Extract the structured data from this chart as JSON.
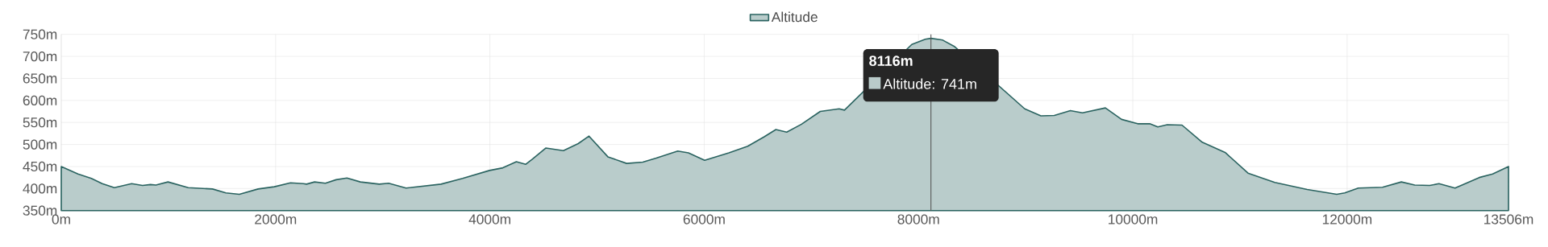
{
  "chart_data": {
    "type": "area",
    "x": [
      0,
      156,
      281,
      382,
      495,
      657,
      758,
      833,
      883,
      996,
      1185,
      1411,
      1536,
      1662,
      1837,
      1988,
      2139,
      2259,
      2289,
      2364,
      2465,
      2565,
      2666,
      2791,
      2967,
      3055,
      3218,
      3544,
      3745,
      3996,
      4121,
      4247,
      4335,
      4398,
      4523,
      4686,
      4824,
      4925,
      5101,
      5276,
      5427,
      5552,
      5753,
      5853,
      6004,
      6230,
      6406,
      6557,
      6669,
      6770,
      6908,
      7083,
      7259,
      7309,
      7535,
      7711,
      7937,
      8063,
      8116,
      8226,
      8338,
      8539,
      8740,
      8991,
      9142,
      9267,
      9417,
      9530,
      9744,
      9895,
      10045,
      10158,
      10233,
      10321,
      10459,
      10648,
      10861,
      11075,
      11325,
      11627,
      11903,
      11978,
      12104,
      12330,
      12506,
      12631,
      12770,
      12857,
      13007,
      13233,
      13358,
      13506
    ],
    "series": [
      {
        "name": "Altitude",
        "color": "#2a6360",
        "values": [
          450,
          433,
          423,
          411,
          402,
          411,
          407,
          409,
          408,
          415,
          402,
          399,
          390,
          387,
          399,
          404,
          413,
          411,
          410,
          415,
          412,
          420,
          424,
          415,
          410,
          412,
          401,
          410,
          423,
          441,
          447,
          461,
          455,
          467,
          492,
          486,
          502,
          519,
          472,
          457,
          460,
          469,
          485,
          481,
          464,
          481,
          496,
          517,
          534,
          528,
          546,
          575,
          581,
          578,
          null,
          null,
          727,
          739,
          741,
          737,
          722,
          null,
          null,
          581,
          565,
          566,
          577,
          572,
          583,
          557,
          547,
          547,
          540,
          545,
          544,
          505,
          482,
          435,
          414,
          398,
          387,
          390,
          401,
          403,
          415,
          408,
          407,
          411,
          401,
          425,
          433,
          450
        ]
      }
    ],
    "xlim": [
      0,
      13506
    ],
    "ylim": [
      350,
      750
    ],
    "xticks": [
      {
        "value": 0,
        "label": "0m"
      },
      {
        "value": 2000,
        "label": "2000m"
      },
      {
        "value": 4000,
        "label": "4000m"
      },
      {
        "value": 6000,
        "label": "6000m"
      },
      {
        "value": 8000,
        "label": "8000m"
      },
      {
        "value": 10000,
        "label": "10000m"
      },
      {
        "value": 12000,
        "label": "12000m"
      },
      {
        "value": 13506,
        "label": "13506m"
      }
    ],
    "yticks": [
      {
        "value": 350,
        "label": "350m"
      },
      {
        "value": 400,
        "label": "400m"
      },
      {
        "value": 450,
        "label": "450m"
      },
      {
        "value": 500,
        "label": "500m"
      },
      {
        "value": 550,
        "label": "550m"
      },
      {
        "value": 600,
        "label": "600m"
      },
      {
        "value": 650,
        "label": "650m"
      },
      {
        "value": 700,
        "label": "700m"
      },
      {
        "value": 750,
        "label": "750m"
      }
    ],
    "ref_lines": [
      {
        "axis": "x",
        "value": 8116,
        "color": "#555555"
      }
    ],
    "annotations": [
      {
        "text": "8116m",
        "x": 8116,
        "y": 741
      },
      {
        "text": "Altitude: 741m",
        "x": 8116,
        "y": 741
      }
    ],
    "grid": true,
    "legend": "top"
  }
}
